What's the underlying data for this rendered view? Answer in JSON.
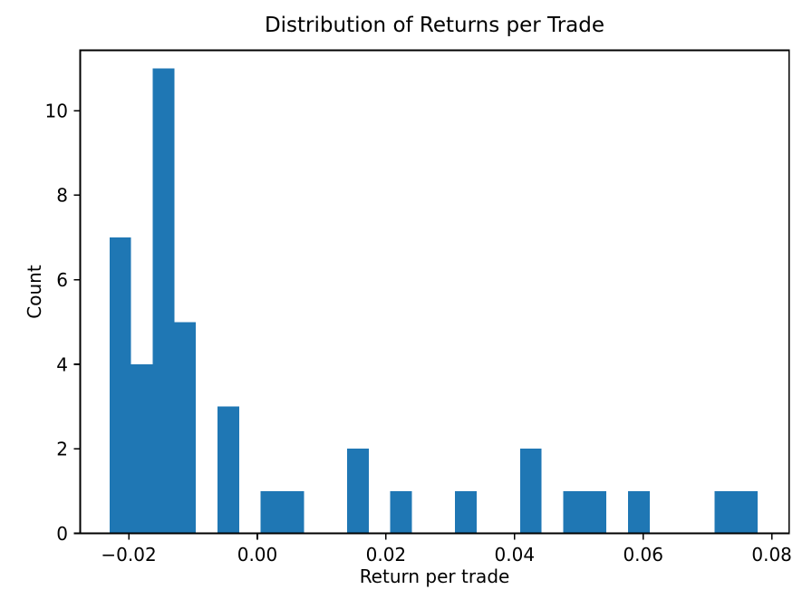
{
  "chart_data": {
    "type": "bar",
    "subtype": "histogram",
    "title": "Distribution of Returns per Trade",
    "xlabel": "Return per trade",
    "ylabel": "Count",
    "bar_color": "#1f77b4",
    "axis_color": "#000000",
    "background_color": "#ffffff",
    "bins": {
      "start": -0.023,
      "width": 0.00336,
      "count": 30
    },
    "counts": [
      7,
      4,
      11,
      5,
      0,
      3,
      0,
      1,
      1,
      0,
      0,
      2,
      0,
      1,
      0,
      0,
      1,
      0,
      0,
      2,
      0,
      1,
      1,
      0,
      1,
      0,
      0,
      0,
      1,
      1
    ],
    "total_trades": 43,
    "xlim": [
      -0.02755,
      0.0827
    ],
    "ylim": [
      0,
      11.43
    ],
    "x_ticks": [
      -0.02,
      0,
      0.02,
      0.04,
      0.06,
      0.08
    ],
    "x_tick_labels": [
      "−0.02",
      "0.00",
      "0.02",
      "0.04",
      "0.06",
      "0.08"
    ],
    "y_ticks": [
      0,
      2,
      4,
      6,
      8,
      10
    ],
    "y_tick_labels": [
      "0",
      "2",
      "4",
      "6",
      "8",
      "10"
    ],
    "grid": false,
    "legend": false
  }
}
